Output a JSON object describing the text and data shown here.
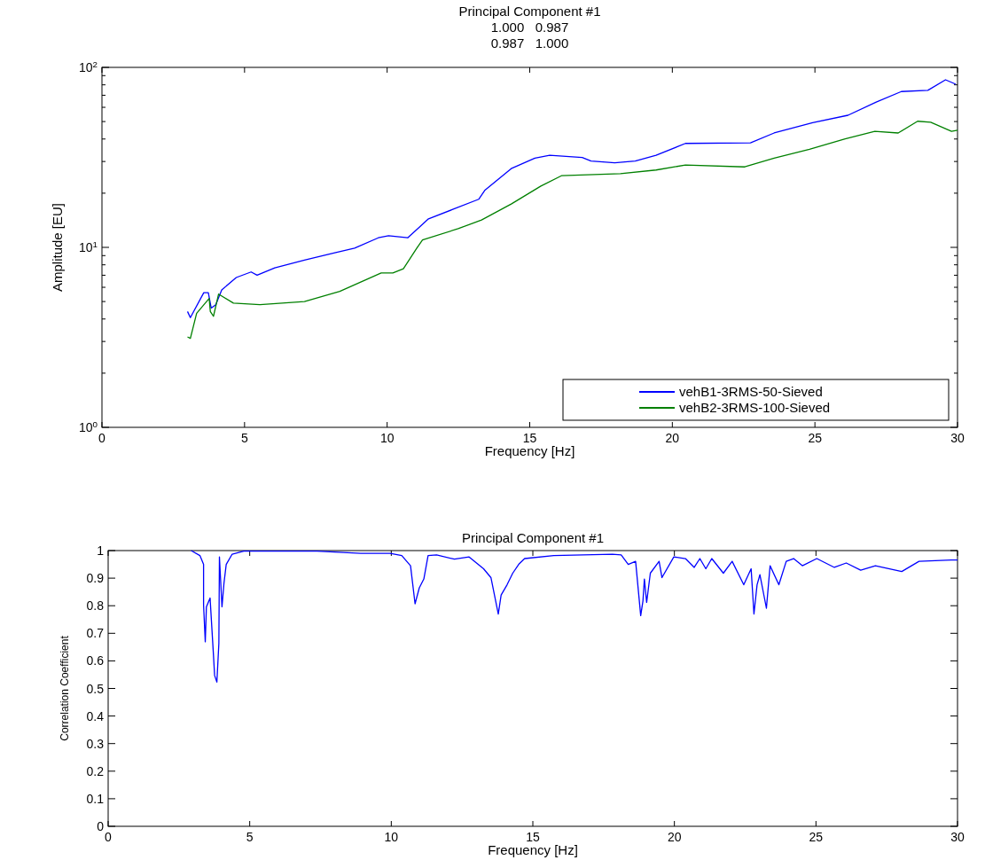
{
  "chart_data": [
    {
      "type": "line",
      "title": "Principal Component #1",
      "subtitle": "1.000   0.987\n0.987   1.000",
      "xlabel": "Frequency [Hz]",
      "ylabel": "Amplitude [EU]",
      "log": "y",
      "xlim": [
        0,
        30
      ],
      "xticks": [
        0,
        5,
        10,
        15,
        20,
        25,
        30
      ],
      "ylim": [
        1,
        100
      ],
      "yticks": [
        {
          "value": 1,
          "label": "10$^{0}$"
        },
        {
          "value": 2,
          "label": null
        },
        {
          "value": 3,
          "label": null
        },
        {
          "value": 4,
          "label": null
        },
        {
          "value": 5,
          "label": null
        },
        {
          "value": 6,
          "label": null
        },
        {
          "value": 7,
          "label": null
        },
        {
          "value": 8,
          "label": null
        },
        {
          "value": 9,
          "label": null
        },
        {
          "value": 10,
          "label": "10$^{1}$"
        },
        {
          "value": 20,
          "label": null
        },
        {
          "value": 30,
          "label": null
        },
        {
          "value": 40,
          "label": null
        },
        {
          "value": 50,
          "label": null
        },
        {
          "value": 60,
          "label": null
        },
        {
          "value": 70,
          "label": null
        },
        {
          "value": 80,
          "label": null
        },
        {
          "value": 90,
          "label": null
        },
        {
          "value": 100,
          "label": "10$^{2}$"
        }
      ],
      "legend": "bottom right",
      "series": [
        {
          "name": "vehB1-3RMS-50-Sieved",
          "color": "#0000ff",
          "x": [
            3.0,
            3.1,
            3.57,
            3.73,
            3.83,
            3.99,
            4.2,
            4.71,
            5.23,
            5.44,
            6.06,
            7.1,
            8.13,
            8.86,
            9.69,
            10.05,
            10.72,
            11.45,
            12.28,
            13.21,
            13.42,
            14.35,
            15.18,
            15.7,
            16.84,
            17.15,
            17.98,
            18.7,
            19.43,
            20.46,
            22.74,
            23.57,
            24.92,
            26.16,
            27.15,
            28.03,
            28.96,
            29.58,
            29.94
          ],
          "values": [
            4.4,
            4.07,
            5.6,
            5.6,
            4.6,
            4.8,
            5.8,
            6.8,
            7.3,
            7.0,
            7.7,
            8.5,
            9.3,
            9.9,
            11.3,
            11.6,
            11.3,
            14.4,
            16.2,
            18.5,
            20.7,
            27.4,
            31.3,
            32.5,
            31.6,
            30.2,
            29.5,
            30.2,
            32.5,
            37.8,
            38.1,
            43.2,
            49.3,
            54.2,
            64.2,
            73.4,
            74.6,
            85.3,
            80.6
          ]
        },
        {
          "name": "vehB2-3RMS-100-Sieved",
          "color": "#008000",
          "x": [
            3.0,
            3.1,
            3.32,
            3.76,
            3.8,
            3.91,
            4.09,
            4.61,
            5.54,
            7.1,
            8.34,
            9.79,
            10.2,
            10.57,
            11.04,
            11.24,
            12.49,
            13.31,
            14.35,
            15.39,
            16.11,
            18.18,
            19.43,
            20.46,
            22.54,
            23.57,
            24.81,
            26.06,
            27.1,
            27.92,
            28.6,
            29.06,
            29.79,
            30.0
          ],
          "values": [
            3.18,
            3.12,
            4.3,
            5.2,
            4.4,
            4.14,
            5.5,
            4.9,
            4.8,
            5.0,
            5.7,
            7.2,
            7.2,
            7.6,
            9.9,
            11.0,
            12.7,
            14.2,
            17.4,
            21.9,
            25.0,
            25.7,
            26.9,
            28.7,
            28.0,
            31.3,
            35.1,
            40.1,
            44.1,
            43.2,
            50.2,
            49.6,
            44.1,
            44.8
          ]
        }
      ]
    },
    {
      "type": "line",
      "title": "Principal Component #1",
      "xlabel": "Frequency [Hz]",
      "ylabel": "Correlation Coefficient",
      "xlim": [
        0,
        30
      ],
      "xticks": [
        0,
        5,
        10,
        15,
        20,
        25,
        30
      ],
      "ylim": [
        0,
        1
      ],
      "yticks": [
        0,
        0.1,
        0.2,
        0.3,
        0.4,
        0.5,
        0.6,
        0.7,
        0.8,
        0.9,
        1
      ],
      "series": [
        {
          "color": "#0000ff",
          "x": [
            2.93,
            3.24,
            3.37,
            3.37,
            3.43,
            3.47,
            3.6,
            3.71,
            3.76,
            3.84,
            3.91,
            3.93,
            4.02,
            4.09,
            4.17,
            4.38,
            4.79,
            7.37,
            8.92,
            9.96,
            10.37,
            10.68,
            10.84,
            10.99,
            11.15,
            11.3,
            11.6,
            12.23,
            12.75,
            13.26,
            13.52,
            13.78,
            13.88,
            14.09,
            14.29,
            14.5,
            14.71,
            15.74,
            17.81,
            18.12,
            18.37,
            18.63,
            18.81,
            18.89,
            18.94,
            19.02,
            19.15,
            19.46,
            19.56,
            19.98,
            20.39,
            20.7,
            20.9,
            21.11,
            21.32,
            21.73,
            22.04,
            22.45,
            22.71,
            22.81,
            22.92,
            23.02,
            23.25,
            23.38,
            23.69,
            23.95,
            24.21,
            24.52,
            25.03,
            25.65,
            26.07,
            26.58,
            27.1,
            28.03,
            28.64,
            29.78,
            30.0
          ],
          "values": [
            1.0,
            0.982,
            0.95,
            0.802,
            0.669,
            0.796,
            0.828,
            0.637,
            0.547,
            0.523,
            0.663,
            0.977,
            0.796,
            0.881,
            0.95,
            0.987,
            0.998,
            0.998,
            0.99,
            0.99,
            0.982,
            0.945,
            0.807,
            0.865,
            0.897,
            0.982,
            0.984,
            0.969,
            0.977,
            0.934,
            0.902,
            0.77,
            0.839,
            0.876,
            0.918,
            0.95,
            0.971,
            0.982,
            0.987,
            0.984,
            0.95,
            0.961,
            0.764,
            0.818,
            0.897,
            0.812,
            0.918,
            0.961,
            0.902,
            0.977,
            0.971,
            0.939,
            0.971,
            0.934,
            0.971,
            0.918,
            0.961,
            0.876,
            0.934,
            0.77,
            0.876,
            0.913,
            0.791,
            0.945,
            0.876,
            0.961,
            0.971,
            0.945,
            0.971,
            0.939,
            0.955,
            0.929,
            0.945,
            0.924,
            0.961,
            0.966,
            0.966
          ]
        }
      ]
    }
  ]
}
